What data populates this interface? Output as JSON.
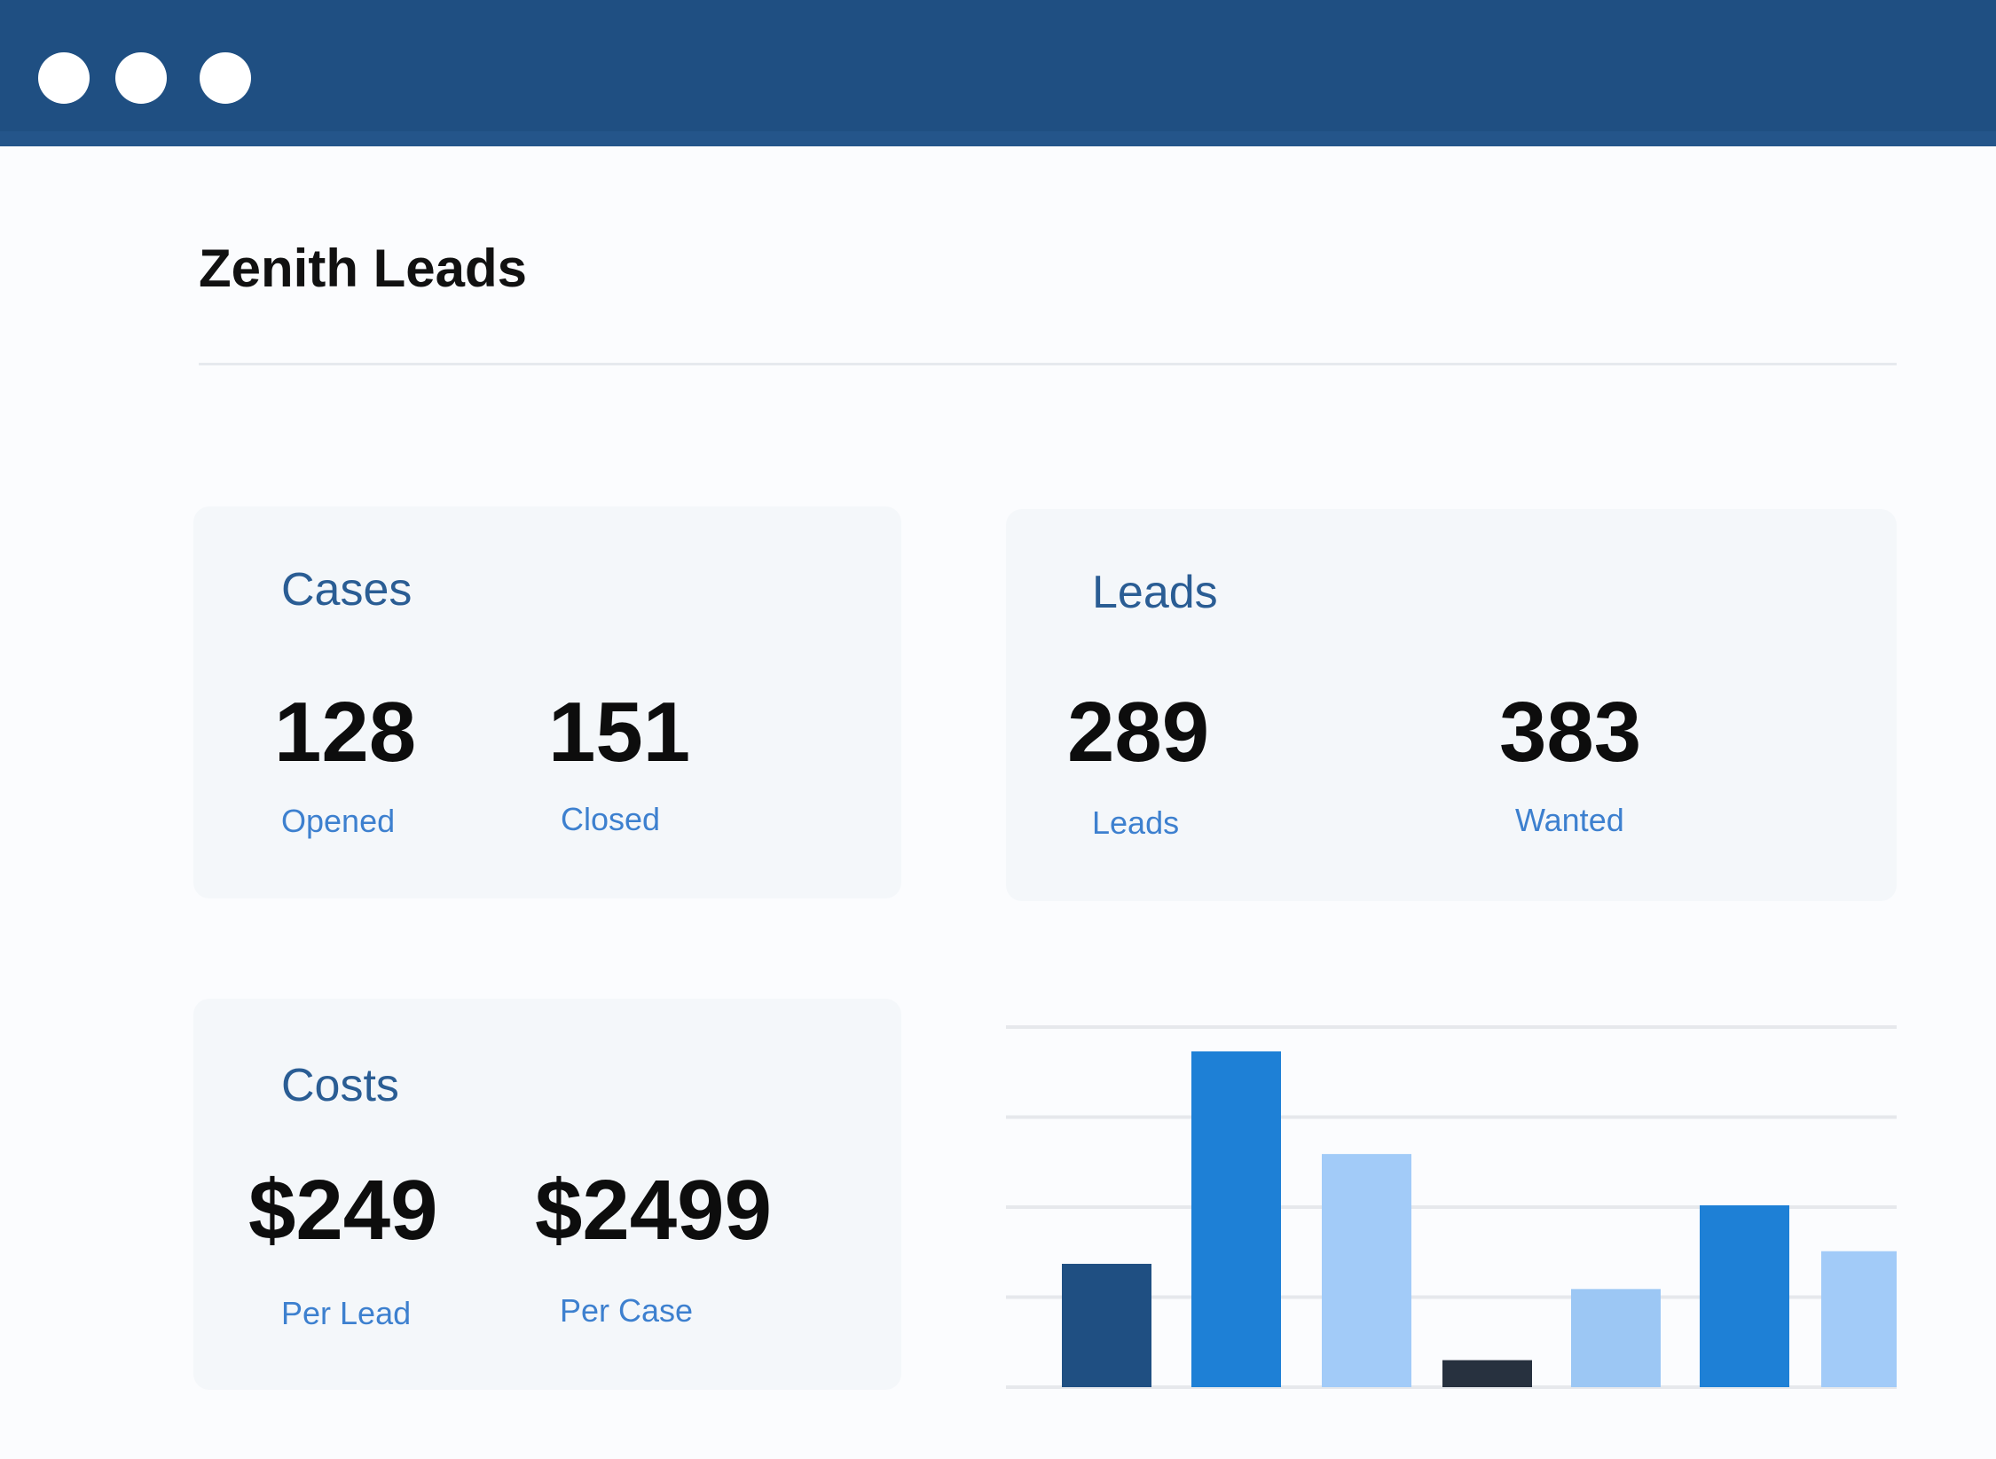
{
  "window": {
    "controls": [
      "close",
      "minimize",
      "maximize"
    ],
    "header_color": "#1f4f82"
  },
  "page": {
    "title": "Zenith Leads"
  },
  "cards": {
    "cases": {
      "title": "Cases",
      "stats": [
        {
          "value": "128",
          "label": "Opened"
        },
        {
          "value": "151",
          "label": "Closed"
        }
      ]
    },
    "leads": {
      "title": "Leads",
      "stats": [
        {
          "value": "289",
          "label": "Leads"
        },
        {
          "value": "383",
          "label": "Wanted"
        }
      ]
    },
    "costs": {
      "title": "Costs",
      "stats": [
        {
          "value": "$249",
          "label": "Per Lead"
        },
        {
          "value": "$2499",
          "label": "Per Case"
        }
      ]
    }
  },
  "chart_data": {
    "type": "bar",
    "title": "",
    "xlabel": "",
    "ylabel": "",
    "ylim": [
      0,
      4
    ],
    "grid": true,
    "values": [
      1.37,
      3.73,
      2.59,
      0.3,
      1.09,
      2.02,
      1.51
    ],
    "colors": [
      "#1f4f82",
      "#1e80d6",
      "#a2cbf8",
      "#27313f",
      "#9cc7f4",
      "#1e80d6",
      "#a2cbf8"
    ]
  }
}
